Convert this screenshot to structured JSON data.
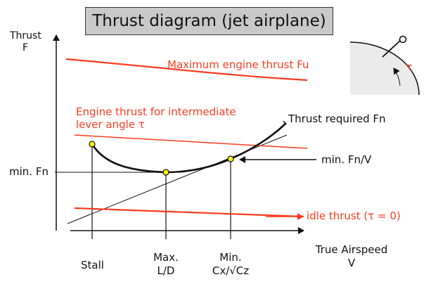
{
  "title": "Thrust diagram (jet airplane)",
  "axes": {
    "y_label_line1": "Thrust",
    "y_label_line2": "F",
    "x_label_line1": "True Airspeed",
    "x_label_line2": "V"
  },
  "curves": {
    "max_thrust": "Maximum engine thrust Fu",
    "intermediate_line1": "Engine thrust for intermediate",
    "intermediate_line2": "lever angle τ",
    "thrust_required": "Thrust required Fn",
    "idle_thrust": "idle thrust (τ = 0)"
  },
  "annotations": {
    "min_fn": "min. Fn",
    "min_fn_over_v": "min. Fn/V"
  },
  "x_ticks": {
    "stall": "Stall",
    "max_ld_line1": "Max.",
    "max_ld_line2": "L/D",
    "min_line1": "Min.",
    "min_line2": "Cx/√Cz"
  },
  "lever_symbol": "τ",
  "colors": {
    "engine_thrust": "#ff3b1f",
    "point_fill": "#ffff00",
    "title_bg": "#c9c9c9",
    "lever_fill": "#ebebeb"
  }
}
